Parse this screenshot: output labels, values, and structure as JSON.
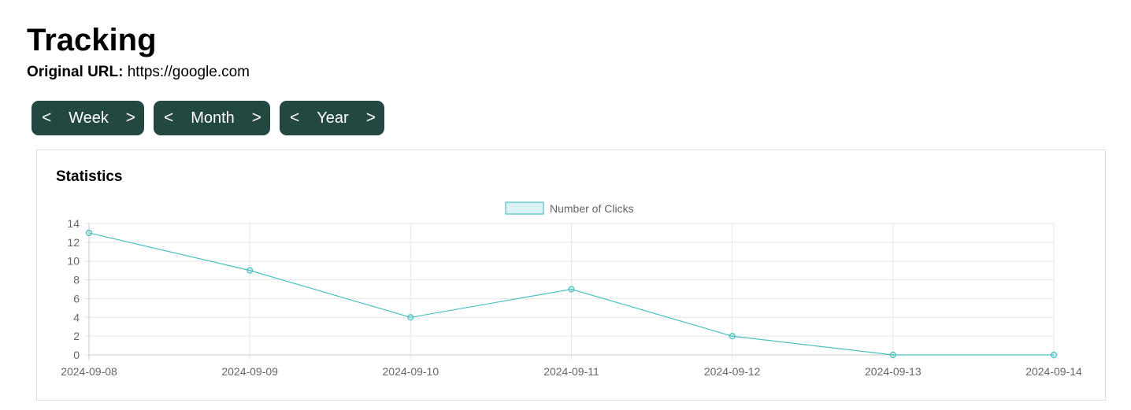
{
  "page": {
    "title": "Tracking",
    "original_url_label": "Original URL:",
    "original_url_value": "https://google.com"
  },
  "controls": {
    "prev_symbol": "<",
    "next_symbol": ">",
    "week_label": "Week",
    "month_label": "Month",
    "year_label": "Year",
    "button_color": "#234741"
  },
  "stats": {
    "title": "Statistics"
  },
  "chart_data": {
    "type": "line",
    "title": "",
    "xlabel": "",
    "ylabel": "",
    "x": [
      "2024-09-08",
      "2024-09-09",
      "2024-09-10",
      "2024-09-11",
      "2024-09-12",
      "2024-09-13",
      "2024-09-14"
    ],
    "series": [
      {
        "name": "Number of Clicks",
        "values": [
          13,
          9,
          4,
          7,
          2,
          0,
          0
        ],
        "color": "#4bc0c0"
      }
    ],
    "ylim": [
      0,
      14
    ],
    "yticks": [
      0,
      2,
      4,
      6,
      8,
      10,
      12,
      14
    ],
    "grid": true,
    "legend": "top-center"
  }
}
